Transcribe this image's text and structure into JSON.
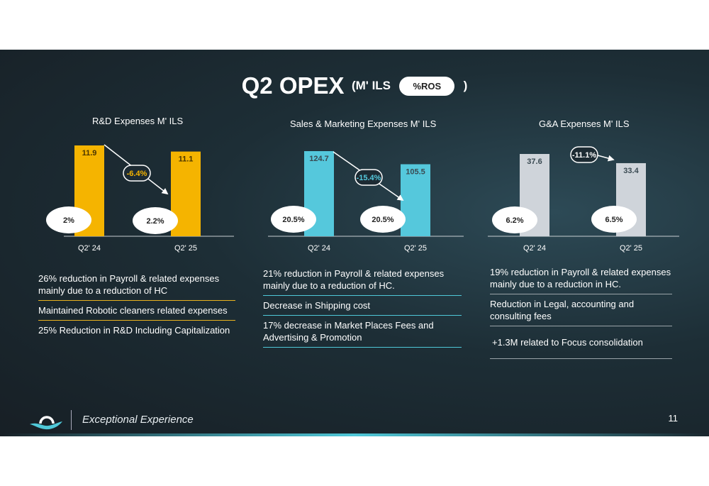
{
  "header": {
    "title": "Q2 OPEX",
    "unit": "(M' ILS",
    "ros_label": "%ROS",
    "close_paren": ")"
  },
  "chart_data": [
    {
      "type": "bar",
      "title": "R&D Expenses M' ILS",
      "categories": [
        "Q2' 24",
        "Q2' 25"
      ],
      "values": [
        11.9,
        11.1
      ],
      "value_labels": [
        "11.9",
        "11.1"
      ],
      "ros_labels": [
        "2%",
        "2.2%"
      ],
      "change_label": "-6.4%",
      "color": "#f5b400",
      "change_color": "#f5b400",
      "ylim": [
        0,
        13
      ]
    },
    {
      "type": "bar",
      "title": "Sales & Marketing Expenses M' ILS",
      "categories": [
        "Q2' 24",
        "Q2' 25"
      ],
      "values": [
        124.7,
        105.5
      ],
      "value_labels": [
        "124.7",
        "105.5"
      ],
      "ros_labels": [
        "20.5%",
        "20.5%"
      ],
      "change_label": "-15.4%",
      "color": "#55c8dc",
      "change_color": "#55c8dc",
      "ylim": [
        0,
        130
      ]
    },
    {
      "type": "bar",
      "title": "G&A  Expenses M' ILS",
      "categories": [
        "Q2' 24",
        "Q2' 25"
      ],
      "values": [
        37.6,
        33.4
      ],
      "value_labels": [
        "37.6",
        "33.4"
      ],
      "ros_labels": [
        "6.2%",
        "6.5%"
      ],
      "change_label": "-11.1%",
      "color": "#cfd4da",
      "change_color": "#ffffff",
      "ylim": [
        0,
        43
      ]
    }
  ],
  "notes": {
    "rd": [
      "26% reduction in Payroll & related expenses mainly due to a reduction of HC",
      "Maintained Robotic cleaners related expenses",
      "25% Reduction in R&D Including Capitalization"
    ],
    "sm": [
      "21% reduction in Payroll & related expenses mainly due to a reduction of HC.",
      "Decrease in Shipping cost",
      "17% decrease in Market Places Fees and Advertising & Promotion"
    ],
    "ga": [
      "19% reduction in Payroll & related expenses mainly due to a reduction in HC.",
      " Reduction in Legal, accounting and consulting fees",
      "+1.3M related to Focus consolidation"
    ]
  },
  "footer": {
    "tagline": "Exceptional Experience",
    "page_number": "11"
  },
  "colors": {
    "rd": "#f5b400",
    "sm": "#55c8dc",
    "ga": "#cfd4da",
    "accent": "#4fc8d8"
  }
}
